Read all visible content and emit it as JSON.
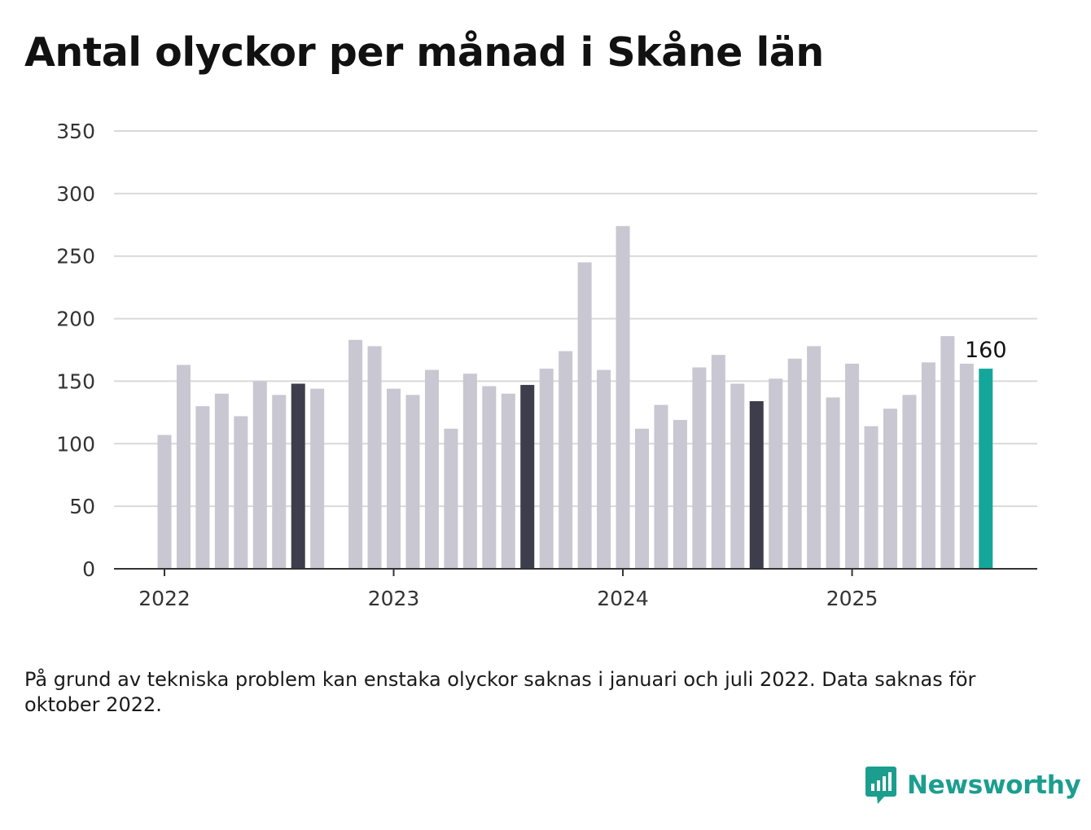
{
  "title": "Antal olyckor per månad i Skåne län",
  "note": "På grund av tekniska problem kan enstaka olyckor saknas i januari och juli 2022. Data saknas för oktober 2022.",
  "brand": {
    "name": "Newsworthy"
  },
  "colors": {
    "bar": "#c8c7d2",
    "highlight": "#3e3d4b",
    "latest": "#14a69b",
    "grid": "#d9d9d9",
    "axis": "#333333",
    "brand": "#1c9e8e"
  },
  "chart_data": {
    "type": "bar",
    "title": "Antal olyckor per månad i Skåne län",
    "xlabel": "",
    "ylabel": "",
    "ylim": [
      0,
      350
    ],
    "yticks": [
      0,
      50,
      100,
      150,
      200,
      250,
      300,
      350
    ],
    "xtick_labels": [
      "2022",
      "2023",
      "2024",
      "2025"
    ],
    "grid": true,
    "legend": "none",
    "categories": [
      "2022-01",
      "2022-02",
      "2022-03",
      "2022-04",
      "2022-05",
      "2022-06",
      "2022-07",
      "2022-08",
      "2022-09",
      "2022-10",
      "2022-11",
      "2022-12",
      "2023-01",
      "2023-02",
      "2023-03",
      "2023-04",
      "2023-05",
      "2023-06",
      "2023-07",
      "2023-08",
      "2023-09",
      "2023-10",
      "2023-11",
      "2023-12",
      "2024-01",
      "2024-02",
      "2024-03",
      "2024-04",
      "2024-05",
      "2024-06",
      "2024-07",
      "2024-08",
      "2024-09",
      "2024-10",
      "2024-11",
      "2024-12",
      "2025-01",
      "2025-02",
      "2025-03",
      "2025-04",
      "2025-05",
      "2025-06",
      "2025-07",
      "2025-08"
    ],
    "values": [
      107,
      163,
      130,
      140,
      122,
      150,
      139,
      148,
      144,
      null,
      183,
      178,
      144,
      139,
      159,
      112,
      156,
      146,
      140,
      147,
      160,
      174,
      245,
      159,
      274,
      112,
      131,
      119,
      161,
      171,
      148,
      134,
      152,
      168,
      178,
      137,
      164,
      114,
      128,
      139,
      165,
      186,
      164,
      160
    ],
    "highlighted": [
      "2022-08",
      "2023-08",
      "2024-08"
    ],
    "latest": "2025-08",
    "value_labels": [
      {
        "category": "2025-08",
        "text": "160"
      }
    ]
  }
}
